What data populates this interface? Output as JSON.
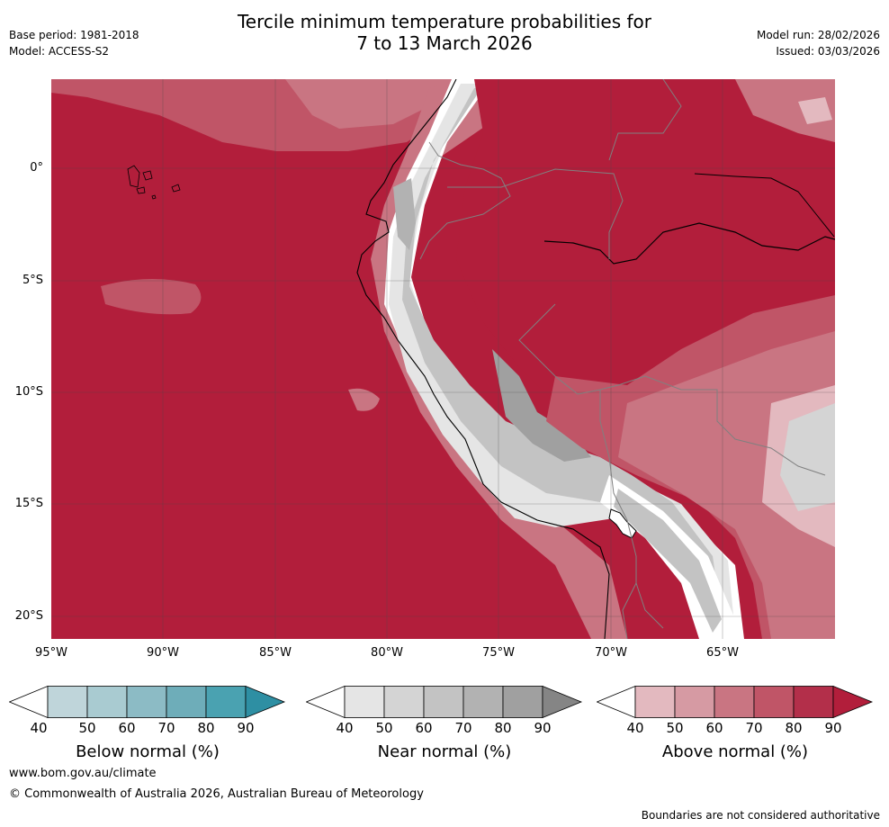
{
  "title": {
    "line1": "Tercile minimum temperature probabilities for",
    "line2": "7 to 13 March 2026"
  },
  "meta_left": {
    "base_period": "Base period: 1981-2018",
    "model": "Model: ACCESS-S2"
  },
  "meta_right": {
    "model_run": "Model run: 28/02/2026",
    "issued": "Issued: 03/03/2026"
  },
  "map": {
    "lat_labels": [
      "0°",
      "5°S",
      "10°S",
      "15°S",
      "20°S"
    ],
    "lon_labels": [
      "95°W",
      "90°W",
      "85°W",
      "80°W",
      "75°W",
      "70°W",
      "65°W"
    ]
  },
  "legend": {
    "tick_values": [
      "40",
      "50",
      "60",
      "70",
      "80",
      "90"
    ],
    "below": {
      "label": "Below normal (%)",
      "colors": [
        "#ffffff",
        "#bfd5da",
        "#a9cbd1",
        "#8cbbc5",
        "#6eadb9",
        "#4aa2b1",
        "#2e8fa3"
      ]
    },
    "near": {
      "label": "Near normal (%)",
      "colors": [
        "#ffffff",
        "#e5e5e5",
        "#d4d4d4",
        "#c3c3c3",
        "#b2b2b2",
        "#a0a0a0",
        "#858585"
      ]
    },
    "above": {
      "label": "Above normal (%)",
      "colors": [
        "#ffffff",
        "#e3b9bf",
        "#d69aa3",
        "#c97582",
        "#c05567",
        "#b32f4a",
        "#b21e3b"
      ]
    }
  },
  "footer": {
    "url": "www.bom.gov.au/climate",
    "copyright": "© Commonwealth of Australia 2026, Australian Bureau of Meteorology",
    "disclaimer": "Boundaries are not considered authoritative"
  }
}
